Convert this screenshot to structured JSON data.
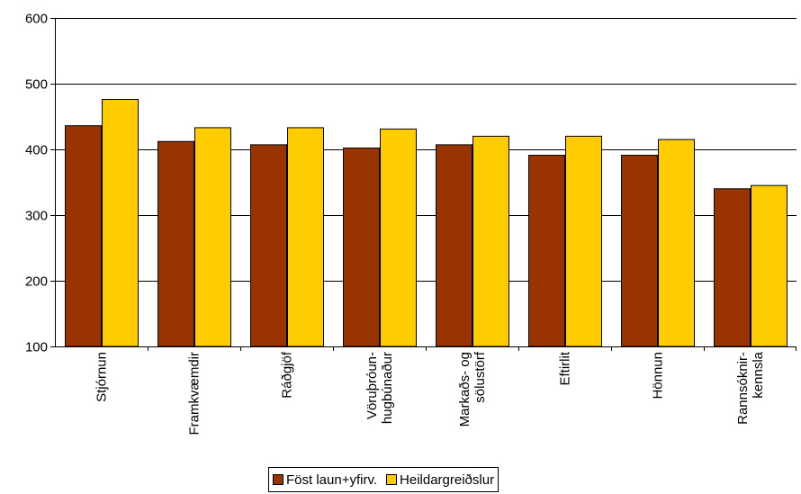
{
  "chart_data": {
    "type": "bar",
    "categories": [
      [
        "Stjórnun"
      ],
      [
        "Framkvæmdir"
      ],
      [
        "Ráðgjöf"
      ],
      [
        "Vöruþróun-",
        "hugbúnaður"
      ],
      [
        "Markaðs- og",
        "sölustörf"
      ],
      [
        "Eftirlit"
      ],
      [
        "Hönnun"
      ],
      [
        "Rannsóknir-",
        "kennsla"
      ]
    ],
    "series": [
      {
        "name": "Föst laun+yfirv.",
        "color": "#993300",
        "values": [
          436,
          412,
          407,
          402,
          407,
          391,
          391,
          340
        ]
      },
      {
        "name": "Heildargreiðslur",
        "color": "#ffcc00",
        "values": [
          476,
          433,
          433,
          431,
          420,
          420,
          415,
          345
        ]
      }
    ],
    "ylim": [
      100,
      600
    ],
    "yticks": [
      100,
      200,
      300,
      400,
      500,
      600
    ],
    "grid": true,
    "legend": "bottom",
    "title": "",
    "xlabel": "",
    "ylabel": ""
  }
}
